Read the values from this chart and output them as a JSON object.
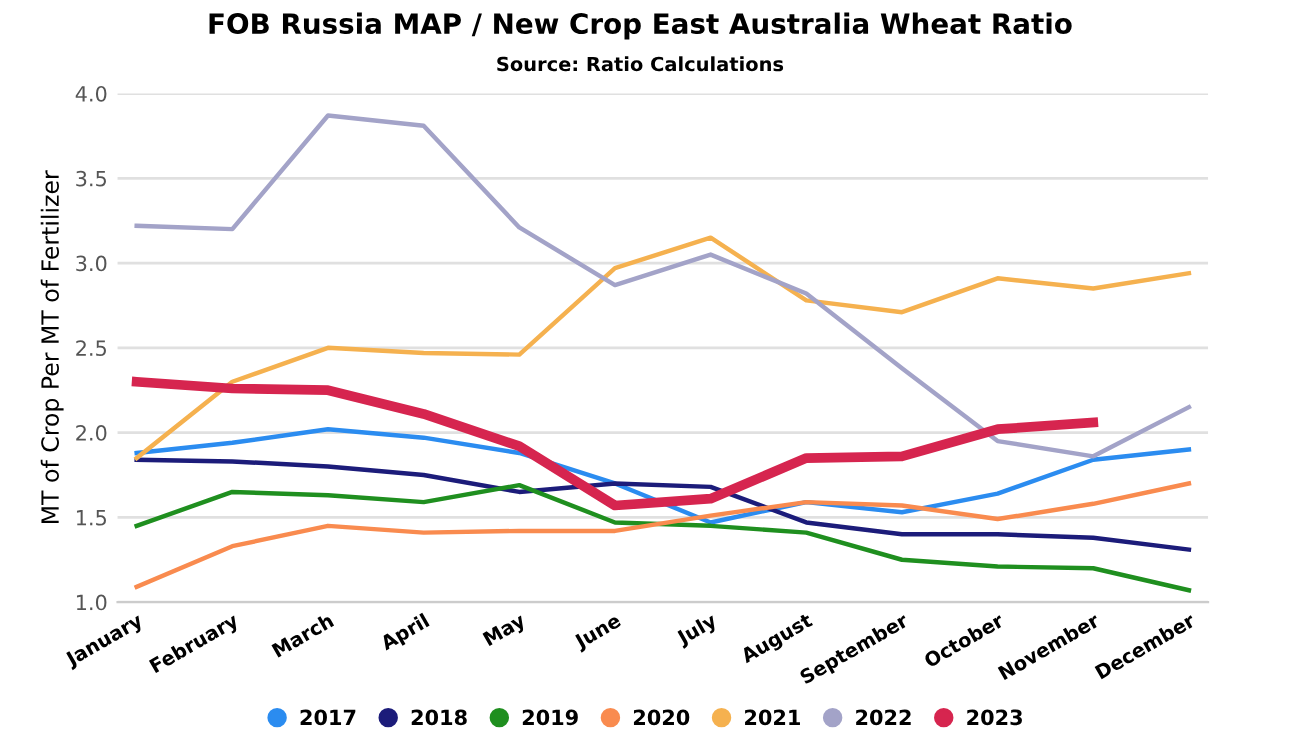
{
  "chart_data": {
    "type": "line",
    "title": "FOB Russia MAP / New Crop East Australia Wheat Ratio",
    "subtitle": "Source: Ratio Calculations",
    "ylabel": "MT of Crop Per MT of Fertilizer",
    "categories": [
      "January",
      "February",
      "March",
      "April",
      "May",
      "June",
      "July",
      "August",
      "September",
      "October",
      "November",
      "December"
    ],
    "series": [
      {
        "name": "2017",
        "color": "#2b8cf0",
        "values": [
          1.88,
          1.94,
          2.02,
          1.97,
          1.88,
          1.7,
          1.47,
          1.59,
          1.53,
          1.64,
          1.84,
          1.9
        ]
      },
      {
        "name": "2018",
        "color": "#1c1c7a",
        "values": [
          1.84,
          1.83,
          1.8,
          1.75,
          1.65,
          1.7,
          1.68,
          1.47,
          1.4,
          1.4,
          1.38,
          1.31
        ]
      },
      {
        "name": "2019",
        "color": "#1f8f1f",
        "values": [
          1.45,
          1.65,
          1.63,
          1.59,
          1.69,
          1.47,
          1.45,
          1.41,
          1.25,
          1.21,
          1.2,
          1.07
        ]
      },
      {
        "name": "2020",
        "color": "#f98b4f",
        "values": [
          1.09,
          1.33,
          1.45,
          1.41,
          1.42,
          1.42,
          1.51,
          1.59,
          1.57,
          1.49,
          1.58,
          1.7
        ]
      },
      {
        "name": "2021",
        "color": "#f5b14f",
        "values": [
          1.85,
          2.3,
          2.5,
          2.47,
          2.46,
          2.97,
          3.15,
          2.78,
          2.71,
          2.91,
          2.85,
          2.94
        ]
      },
      {
        "name": "2022",
        "color": "#a3a3c8",
        "values": [
          3.22,
          3.2,
          3.87,
          3.81,
          3.21,
          2.87,
          3.05,
          2.82,
          2.38,
          1.95,
          1.86,
          2.15
        ]
      },
      {
        "name": "2023",
        "color": "#d6254f",
        "values": [
          2.3,
          2.26,
          2.25,
          2.11,
          1.92,
          1.57,
          1.61,
          1.85,
          1.86,
          2.02,
          2.06,
          null
        ]
      }
    ],
    "ylim": [
      1.0,
      4.0
    ],
    "yticks": [
      {
        "value": 1.0,
        "label": "1.0"
      },
      {
        "value": 1.5,
        "label": "1.5"
      },
      {
        "value": 2.0,
        "label": "2.0"
      },
      {
        "value": 2.5,
        "label": "2.5"
      },
      {
        "value": 3.0,
        "label": "3.0"
      },
      {
        "value": 3.5,
        "label": "3.5"
      },
      {
        "value": 4.0,
        "label": "4.0"
      }
    ],
    "grid": "y",
    "legend": "bottom",
    "marker": "none",
    "line_style": "solid"
  }
}
